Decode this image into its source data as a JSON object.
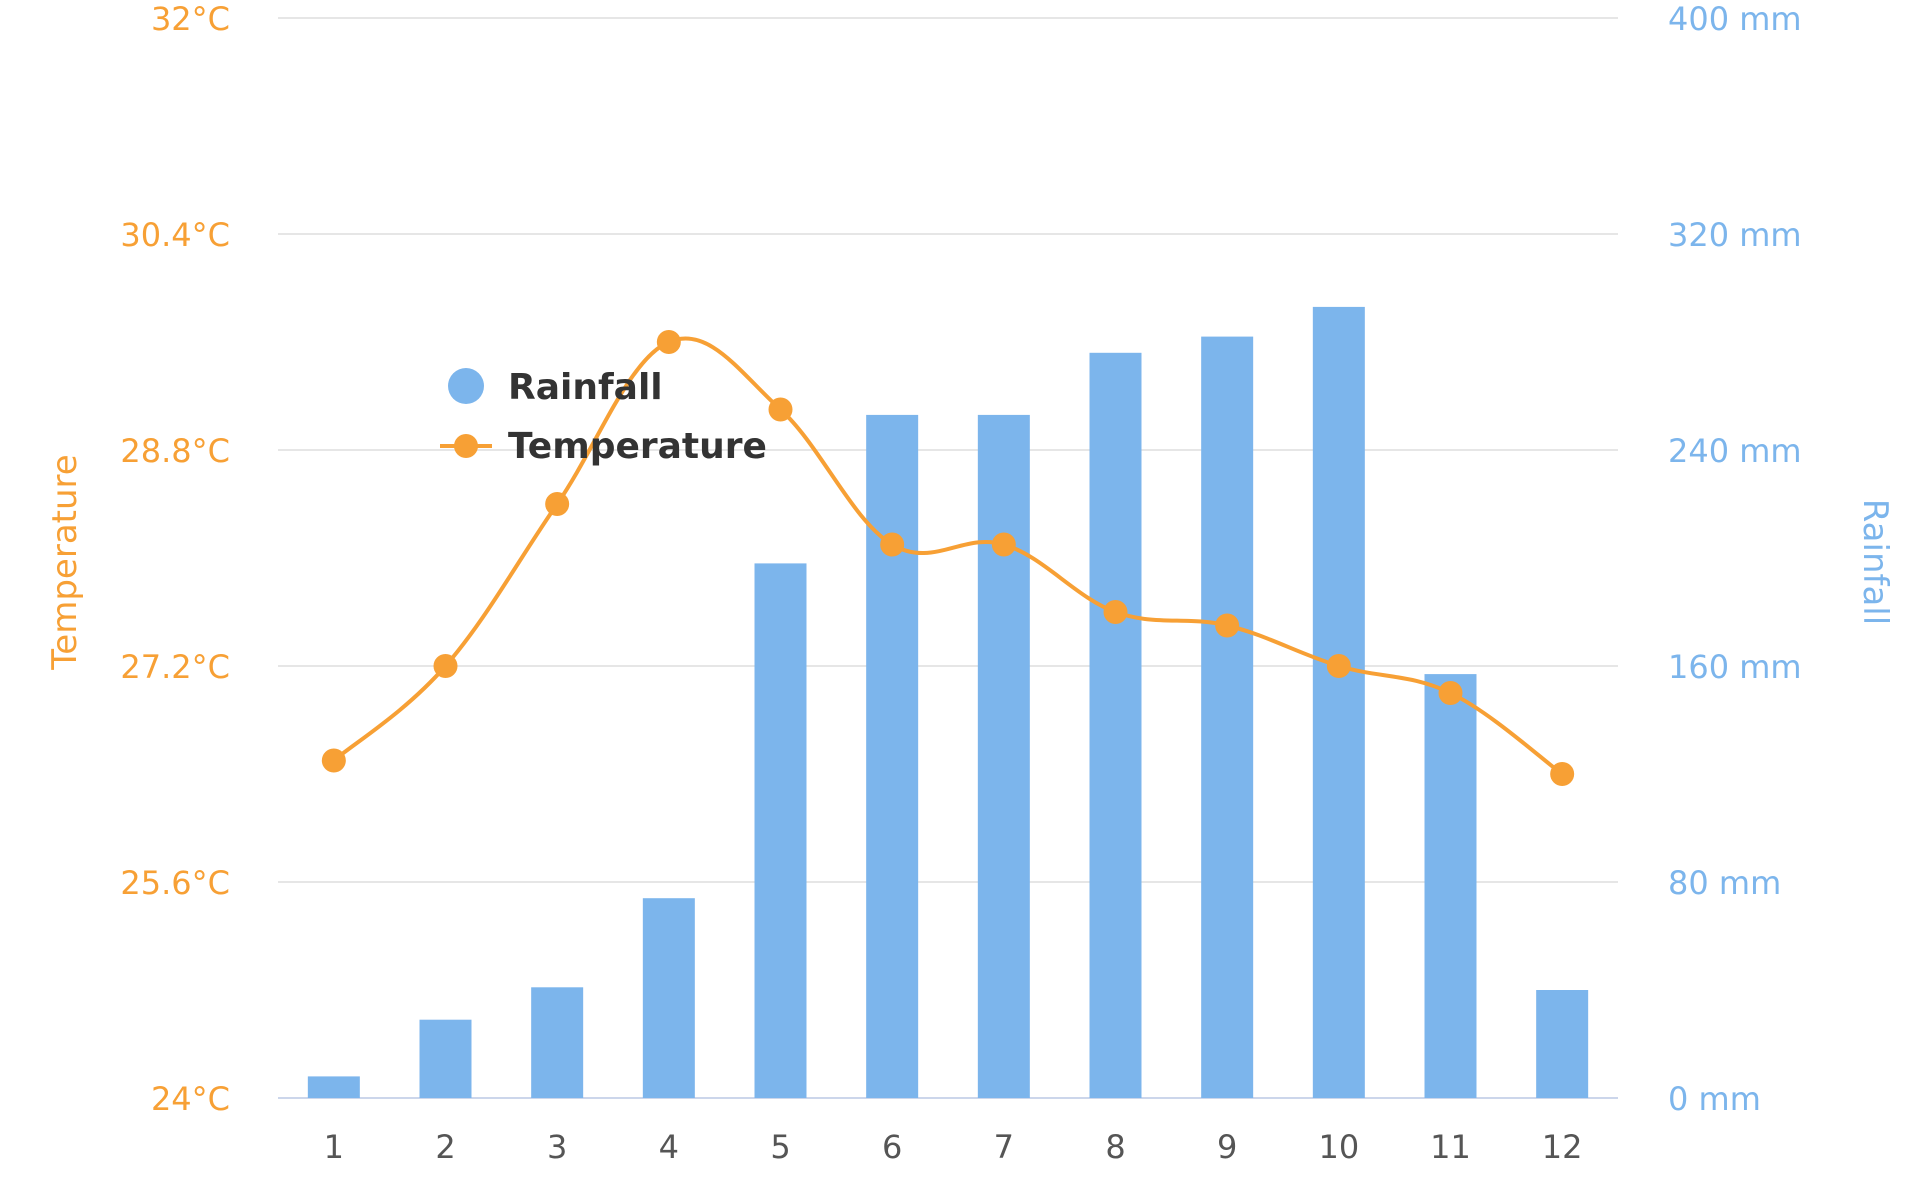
{
  "chart_data": {
    "type": "bar",
    "categories": [
      "1",
      "2",
      "3",
      "4",
      "5",
      "6",
      "7",
      "8",
      "9",
      "10",
      "11",
      "12"
    ],
    "series": [
      {
        "name": "Rainfall",
        "type": "bar",
        "axis": "right",
        "color": "#7cb5ec",
        "values": [
          8,
          29,
          41,
          74,
          198,
          253,
          253,
          276,
          282,
          293,
          157,
          40
        ]
      },
      {
        "name": "Temperature",
        "type": "line",
        "axis": "left",
        "color": "#f7a035",
        "values": [
          26.5,
          27.2,
          28.4,
          29.6,
          29.1,
          28.1,
          28.1,
          27.6,
          27.5,
          27.2,
          27.0,
          26.4
        ]
      }
    ],
    "y_left": {
      "label": "Temperature",
      "ylim": [
        24,
        32
      ],
      "ticks": [
        "24°C",
        "25.6°C",
        "27.2°C",
        "28.8°C",
        "30.4°C",
        "32°C"
      ],
      "color": "#f7a035"
    },
    "y_right": {
      "label": "Rainfall",
      "ylim": [
        0,
        400
      ],
      "ticks": [
        "0 mm",
        "80 mm",
        "160 mm",
        "240 mm",
        "320 mm",
        "400 mm"
      ],
      "color": "#7cb5ec"
    },
    "grid": true,
    "legend_position": "top-left"
  }
}
